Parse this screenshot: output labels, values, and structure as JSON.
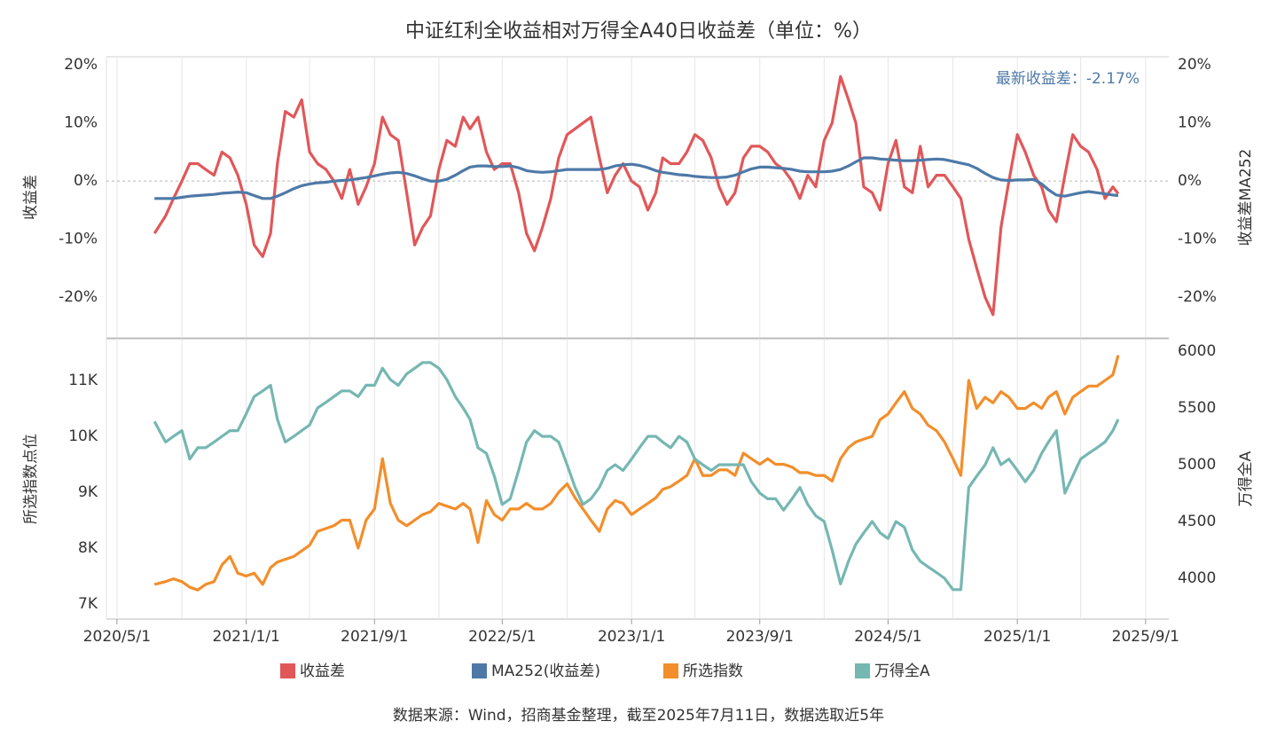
{
  "chart_data": [
    {
      "type": "line",
      "title": "中证红利全收益相对万得全A40日收益差（单位：%）",
      "annotation": "最新收益差：-2.17%",
      "ylabel": "收益差",
      "y2label": "收益差MA252",
      "x": [
        "2020/7/11",
        "2020/8/1",
        "2020/8/16",
        "2020/9/1",
        "2020/9/16",
        "2020/10/1",
        "2020/10/16",
        "2020/11/1",
        "2020/11/16",
        "2020/12/1",
        "2020/12/16",
        "2021/1/1",
        "2021/1/16",
        "2021/2/1",
        "2021/2/16",
        "2021/3/1",
        "2021/3/16",
        "2021/4/1",
        "2021/4/16",
        "2021/5/1",
        "2021/5/16",
        "2021/6/1",
        "2021/6/16",
        "2021/7/1",
        "2021/7/16",
        "2021/8/1",
        "2021/8/16",
        "2021/9/1",
        "2021/9/16",
        "2021/10/1",
        "2021/10/16",
        "2021/11/1",
        "2021/11/16",
        "2021/12/1",
        "2021/12/16",
        "2022/1/1",
        "2022/1/16",
        "2022/2/1",
        "2022/2/16",
        "2022/3/1",
        "2022/3/16",
        "2022/4/1",
        "2022/4/16",
        "2022/5/1",
        "2022/5/16",
        "2022/6/1",
        "2022/6/16",
        "2022/7/1",
        "2022/7/16",
        "2022/8/1",
        "2022/8/16",
        "2022/9/1",
        "2022/9/16",
        "2022/10/1",
        "2022/10/16",
        "2022/11/1",
        "2022/11/16",
        "2022/12/1",
        "2022/12/16",
        "2023/1/1",
        "2023/1/16",
        "2023/2/1",
        "2023/2/16",
        "2023/3/1",
        "2023/3/16",
        "2023/4/1",
        "2023/4/16",
        "2023/5/1",
        "2023/5/16",
        "2023/6/1",
        "2023/6/16",
        "2023/7/1",
        "2023/7/16",
        "2023/8/1",
        "2023/8/16",
        "2023/9/1",
        "2023/9/16",
        "2023/10/1",
        "2023/10/16",
        "2023/11/1",
        "2023/11/16",
        "2023/12/1",
        "2023/12/16",
        "2024/1/1",
        "2024/1/16",
        "2024/2/1",
        "2024/2/16",
        "2024/3/1",
        "2024/3/16",
        "2024/4/1",
        "2024/4/16",
        "2024/5/1",
        "2024/5/16",
        "2024/6/1",
        "2024/6/16",
        "2024/7/1",
        "2024/7/16",
        "2024/8/1",
        "2024/8/16",
        "2024/9/1",
        "2024/9/16",
        "2024/10/1",
        "2024/10/16",
        "2024/11/1",
        "2024/11/16",
        "2024/12/1",
        "2024/12/16",
        "2025/1/1",
        "2025/1/16",
        "2025/2/1",
        "2025/2/16",
        "2025/3/1",
        "2025/3/16",
        "2025/4/1",
        "2025/4/16",
        "2025/5/1",
        "2025/5/16",
        "2025/6/1",
        "2025/6/16",
        "2025/7/1",
        "2025/7/11"
      ],
      "xlim": [
        "2020/4/11",
        "2025/10/15"
      ],
      "xgrid": [
        "2020/5/1",
        "2020/9/1",
        "2021/1/1",
        "2021/5/1",
        "2021/9/1",
        "2022/1/1",
        "2022/5/1",
        "2022/9/1",
        "2023/1/1",
        "2023/5/1",
        "2023/9/1",
        "2024/1/1",
        "2024/5/1",
        "2024/9/1",
        "2025/1/1",
        "2025/5/1",
        "2025/9/1"
      ],
      "ylim": [
        -27,
        21.4
      ],
      "yticks": [
        {
          "value": -20,
          "label": "-20%"
        },
        {
          "value": -10,
          "label": "-10%"
        },
        {
          "value": 0,
          "label": "0%"
        },
        {
          "value": 10,
          "label": "10%"
        },
        {
          "value": 20,
          "label": "20%"
        }
      ],
      "y2lim": [
        -27,
        21.4
      ],
      "y2ticks": [
        {
          "value": -20,
          "label": "-20%"
        },
        {
          "value": -10,
          "label": "-10%"
        },
        {
          "value": 0,
          "label": "0%"
        },
        {
          "value": 10,
          "label": "10%"
        },
        {
          "value": 20,
          "label": "20%"
        }
      ],
      "zero_line": true,
      "series": [
        {
          "name": "收益差",
          "color": "#e15759",
          "values": [
            -9,
            -6,
            -3,
            0,
            3,
            3,
            2,
            1,
            5,
            4,
            1,
            -4,
            -11,
            -13,
            -9,
            3,
            12,
            11,
            14,
            5,
            3,
            2,
            0,
            -3,
            2,
            -4,
            -1,
            3,
            11,
            8,
            7,
            -2,
            -11,
            -8,
            -6,
            2,
            7,
            6,
            11,
            9,
            11,
            5,
            2,
            3,
            3,
            -2,
            -9,
            -12,
            -8,
            -3,
            4,
            8,
            9,
            10,
            11,
            4,
            -2,
            1,
            3,
            0,
            -1,
            -5,
            -2,
            4,
            3,
            3,
            5,
            8,
            7,
            4,
            -1,
            -4,
            -2,
            4,
            6,
            6,
            5,
            3,
            2,
            0,
            -3,
            1,
            -1,
            7,
            10,
            18,
            14,
            10,
            -1,
            -2,
            -5,
            3,
            7,
            -1,
            -2,
            6,
            -1,
            1,
            1,
            -1,
            -3,
            -10,
            -15,
            -20,
            -23,
            -8,
            0,
            8,
            5,
            1,
            -1,
            -5,
            -7,
            1,
            8,
            6,
            5,
            2,
            -3,
            -1,
            -2.17
          ]
        },
        {
          "name": "MA252(收益差)",
          "color": "#4e79a7",
          "axis": "y2",
          "values": [
            -3,
            -3,
            -3,
            -2.8,
            -2.6,
            -2.5,
            -2.4,
            -2.3,
            -2.1,
            -2,
            -1.9,
            -2,
            -2.5,
            -3,
            -3,
            -2.6,
            -2,
            -1.3,
            -0.8,
            -0.5,
            -0.3,
            -0.2,
            0,
            0.1,
            0.2,
            0.4,
            0.6,
            0.9,
            1.2,
            1.4,
            1.5,
            1.3,
            0.9,
            0.4,
            0,
            0,
            0.3,
            1,
            1.8,
            2.4,
            2.6,
            2.6,
            2.5,
            2.5,
            2.6,
            2.3,
            1.8,
            1.6,
            1.5,
            1.6,
            1.8,
            2,
            2,
            2,
            2,
            2,
            2.2,
            2.6,
            2.8,
            2.9,
            2.7,
            2.3,
            1.8,
            1.5,
            1.3,
            1.1,
            1,
            0.8,
            0.7,
            0.6,
            0.6,
            0.7,
            1,
            1.6,
            2.1,
            2.4,
            2.4,
            2.3,
            2.2,
            2,
            1.7,
            1.6,
            1.6,
            1.6,
            1.7,
            2,
            2.6,
            3.3,
            4,
            4,
            3.8,
            3.7,
            3.6,
            3.5,
            3.5,
            3.6,
            3.7,
            3.8,
            3.7,
            3.4,
            3.1,
            2.8,
            2.2,
            1.3,
            0.6,
            0.2,
            0.1,
            0.2,
            0.2,
            0.3,
            -0.5,
            -1.5,
            -2.4,
            -2.6,
            -2.3,
            -2,
            -1.8,
            -2,
            -2.2,
            -2.4,
            -2.5
          ]
        }
      ]
    },
    {
      "type": "line",
      "ylabel": "所选指数点位",
      "y2label": "万得全A",
      "x": [
        "2020/7/11",
        "2020/8/1",
        "2020/8/16",
        "2020/9/1",
        "2020/9/16",
        "2020/10/1",
        "2020/10/16",
        "2020/11/1",
        "2020/11/16",
        "2020/12/1",
        "2020/12/16",
        "2021/1/1",
        "2021/1/16",
        "2021/2/1",
        "2021/2/16",
        "2021/3/1",
        "2021/3/16",
        "2021/4/1",
        "2021/4/16",
        "2021/5/1",
        "2021/5/16",
        "2021/6/1",
        "2021/6/16",
        "2021/7/1",
        "2021/7/16",
        "2021/8/1",
        "2021/8/16",
        "2021/9/1",
        "2021/9/16",
        "2021/10/1",
        "2021/10/16",
        "2021/11/1",
        "2021/11/16",
        "2021/12/1",
        "2021/12/16",
        "2022/1/1",
        "2022/1/16",
        "2022/2/1",
        "2022/2/16",
        "2022/3/1",
        "2022/3/16",
        "2022/4/1",
        "2022/4/16",
        "2022/5/1",
        "2022/5/16",
        "2022/6/1",
        "2022/6/16",
        "2022/7/1",
        "2022/7/16",
        "2022/8/1",
        "2022/8/16",
        "2022/9/1",
        "2022/9/16",
        "2022/10/1",
        "2022/10/16",
        "2022/11/1",
        "2022/11/16",
        "2022/12/1",
        "2022/12/16",
        "2023/1/1",
        "2023/1/16",
        "2023/2/1",
        "2023/2/16",
        "2023/3/1",
        "2023/3/16",
        "2023/4/1",
        "2023/4/16",
        "2023/5/1",
        "2023/5/16",
        "2023/6/1",
        "2023/6/16",
        "2023/7/1",
        "2023/7/16",
        "2023/8/1",
        "2023/8/16",
        "2023/9/1",
        "2023/9/16",
        "2023/10/1",
        "2023/10/16",
        "2023/11/1",
        "2023/11/16",
        "2023/12/1",
        "2023/12/16",
        "2024/1/1",
        "2024/1/16",
        "2024/2/1",
        "2024/2/16",
        "2024/3/1",
        "2024/3/16",
        "2024/4/1",
        "2024/4/16",
        "2024/5/1",
        "2024/5/16",
        "2024/6/1",
        "2024/6/16",
        "2024/7/1",
        "2024/7/16",
        "2024/8/1",
        "2024/8/16",
        "2024/9/1",
        "2024/9/16",
        "2024/10/1",
        "2024/10/16",
        "2024/11/1",
        "2024/11/16",
        "2024/12/1",
        "2024/12/16",
        "2025/1/1",
        "2025/1/16",
        "2025/2/1",
        "2025/2/16",
        "2025/3/1",
        "2025/3/16",
        "2025/4/1",
        "2025/4/16",
        "2025/5/1",
        "2025/5/16",
        "2025/6/1",
        "2025/6/16",
        "2025/7/1",
        "2025/7/11"
      ],
      "xlim": [
        "2020/4/11",
        "2025/10/15"
      ],
      "xgrid": [
        "2020/5/1",
        "2020/9/1",
        "2021/1/1",
        "2021/5/1",
        "2021/9/1",
        "2022/1/1",
        "2022/5/1",
        "2022/9/1",
        "2023/1/1",
        "2023/5/1",
        "2023/9/1",
        "2024/1/1",
        "2024/5/1",
        "2024/9/1",
        "2025/1/1",
        "2025/5/1",
        "2025/9/1"
      ],
      "xticks": [
        "2020/5/1",
        "2021/1/1",
        "2021/9/1",
        "2022/5/1",
        "2023/1/1",
        "2023/9/1",
        "2024/5/1",
        "2025/1/1",
        "2025/9/1"
      ],
      "ylim": [
        6730,
        11746
      ],
      "yticks": [
        {
          "value": 7000,
          "label": "7K"
        },
        {
          "value": 8000,
          "label": "8K"
        },
        {
          "value": 9000,
          "label": "9K"
        },
        {
          "value": 10000,
          "label": "10K"
        },
        {
          "value": 11000,
          "label": "11K"
        }
      ],
      "y2lim": [
        3641,
        6109
      ],
      "y2ticks": [
        4000,
        4500,
        5000,
        5500,
        6000
      ],
      "series": [
        {
          "name": "所选指数",
          "color": "#f28e2b",
          "values": [
            7350,
            7400,
            7450,
            7400,
            7300,
            7250,
            7350,
            7400,
            7700,
            7850,
            7550,
            7500,
            7550,
            7350,
            7650,
            7750,
            7800,
            7850,
            7950,
            8050,
            8300,
            8350,
            8400,
            8500,
            8500,
            8000,
            8500,
            8700,
            9600,
            8800,
            8500,
            8400,
            8500,
            8600,
            8650,
            8800,
            8750,
            8700,
            8800,
            8700,
            8100,
            8850,
            8600,
            8500,
            8700,
            8700,
            8800,
            8700,
            8700,
            8800,
            9000,
            9150,
            8900,
            8700,
            8500,
            8300,
            8700,
            8850,
            8800,
            8600,
            8700,
            8800,
            8900,
            9050,
            9100,
            9200,
            9300,
            9600,
            9300,
            9300,
            9400,
            9400,
            9300,
            9700,
            9600,
            9500,
            9600,
            9500,
            9500,
            9450,
            9350,
            9350,
            9300,
            9300,
            9200,
            9600,
            9800,
            9900,
            9950,
            10000,
            10300,
            10400,
            10600,
            10800,
            10500,
            10400,
            10200,
            10100,
            9900,
            9600,
            9300,
            11000,
            10500,
            10700,
            10600,
            10800,
            10700,
            10500,
            10500,
            10600,
            10500,
            10700,
            10800,
            10400,
            10700,
            10800,
            10900,
            10900,
            11000,
            11100,
            11450
          ]
        },
        {
          "name": "万得全A",
          "color": "#76b7b2",
          "axis": "y2",
          "values": [
            5380,
            5200,
            5250,
            5300,
            5050,
            5150,
            5150,
            5200,
            5250,
            5300,
            5300,
            5450,
            5600,
            5650,
            5700,
            5400,
            5200,
            5250,
            5300,
            5350,
            5500,
            5550,
            5600,
            5650,
            5650,
            5600,
            5700,
            5700,
            5850,
            5750,
            5700,
            5800,
            5850,
            5900,
            5900,
            5850,
            5750,
            5600,
            5500,
            5400,
            5150,
            5100,
            4900,
            4650,
            4700,
            4950,
            5200,
            5300,
            5250,
            5250,
            5200,
            5000,
            4800,
            4650,
            4700,
            4800,
            4950,
            5000,
            4950,
            5050,
            5150,
            5250,
            5250,
            5200,
            5150,
            5250,
            5200,
            5050,
            5000,
            4950,
            5000,
            5000,
            5000,
            5000,
            4850,
            4750,
            4700,
            4700,
            4600,
            4700,
            4800,
            4650,
            4550,
            4500,
            4250,
            3950,
            4150,
            4300,
            4400,
            4500,
            4400,
            4350,
            4500,
            4450,
            4250,
            4150,
            4100,
            4050,
            4000,
            3900,
            3900,
            4800,
            4900,
            5000,
            5150,
            5000,
            5050,
            4950,
            4850,
            4950,
            5100,
            5200,
            5300,
            4750,
            4900,
            5050,
            5100,
            5150,
            5200,
            5300,
            5400
          ]
        }
      ]
    }
  ],
  "legend": "bottom",
  "source": "数据来源：Wind，招商基金整理，截至2025年7月11日，数据选取近5年"
}
